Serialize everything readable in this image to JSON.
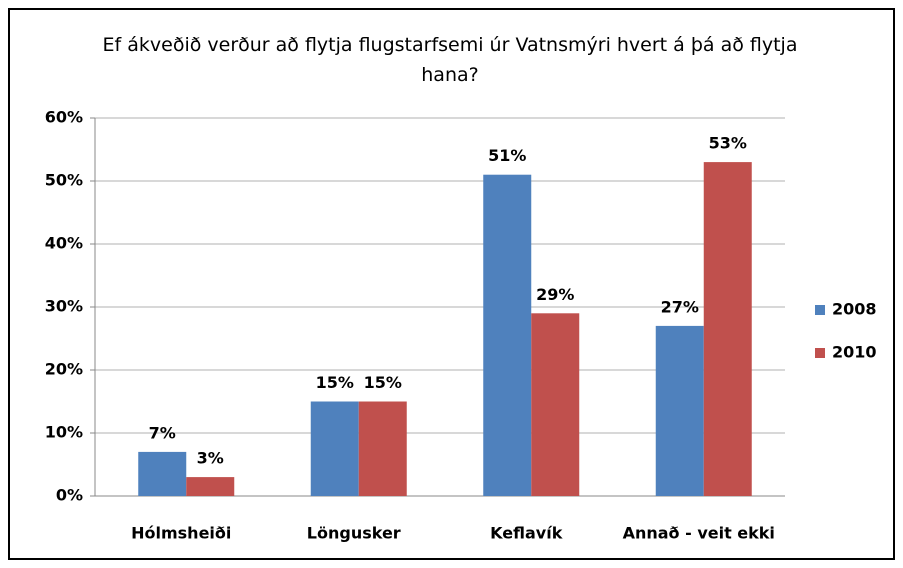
{
  "chart_data": {
    "type": "bar",
    "title": "Ef ákveðið verður að flytja flugstarfsemi úr Vatnsmýri hvert á þá að flytja hana?",
    "categories": [
      "Hólmsheiði",
      "Löngusker",
      "Keflavík",
      "Annað - veit ekki"
    ],
    "series": [
      {
        "name": "2008",
        "color": "#4f81bd",
        "values": [
          7,
          15,
          51,
          27
        ],
        "value_labels": [
          "7%",
          "15%",
          "51%",
          "27%"
        ]
      },
      {
        "name": "2010",
        "color": "#c0504d",
        "values": [
          3,
          15,
          29,
          53
        ],
        "value_labels": [
          "3%",
          "15%",
          "29%",
          "53%"
        ]
      }
    ],
    "ylim": [
      0,
      60
    ],
    "yticks": [
      {
        "value": 0,
        "label": "0%"
      },
      {
        "value": 10,
        "label": "10%"
      },
      {
        "value": 20,
        "label": "20%"
      },
      {
        "value": 30,
        "label": "30%"
      },
      {
        "value": 40,
        "label": "40%"
      },
      {
        "value": 50,
        "label": "50%"
      },
      {
        "value": 60,
        "label": "60%"
      }
    ],
    "grid": true,
    "legend": "right"
  }
}
